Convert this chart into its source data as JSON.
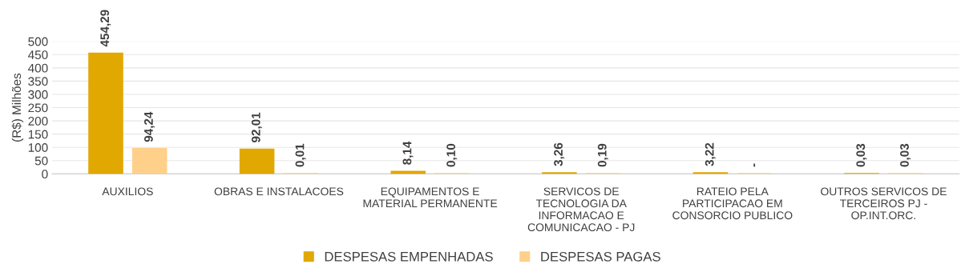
{
  "chart_data": {
    "type": "bar",
    "categories": [
      "AUXILIOS",
      "OBRAS E INSTALACOES",
      "EQUIPAMENTOS E\nMATERIAL PERMANENTE",
      "SERVICOS DE\nTECNOLOGIA DA\nINFORMACAO E\nCOMUNICACAO - PJ",
      "RATEIO PELA\nPARTICIPACAO EM\nCONSORCIO PUBLICO",
      "OUTROS SERVICOS DE\nTERCEIROS PJ -\nOP.INT.ORC."
    ],
    "series": [
      {
        "name": "DESPESAS EMPENHADAS",
        "color": "#e0a800",
        "values": [
          454.29,
          92.01,
          8.14,
          3.26,
          3.22,
          0.03
        ],
        "value_labels": [
          "454,29",
          "92,01",
          "8,14",
          "3,26",
          "3,22",
          "0,03"
        ]
      },
      {
        "name": "DESPESAS PAGAS",
        "color": "#ffd08a",
        "values": [
          94.24,
          0.01,
          0.1,
          0.19,
          0,
          0.03
        ],
        "value_labels": [
          "94,24",
          "0,01",
          "0,10",
          "0,19",
          "-",
          "0,03"
        ]
      }
    ],
    "ylabel": "(R$) Milhões",
    "ylim": [
      0,
      500
    ],
    "yticks": [
      0,
      50,
      100,
      150,
      200,
      250,
      300,
      350,
      400,
      450,
      500
    ],
    "grid": "y",
    "legend": "bottom"
  }
}
